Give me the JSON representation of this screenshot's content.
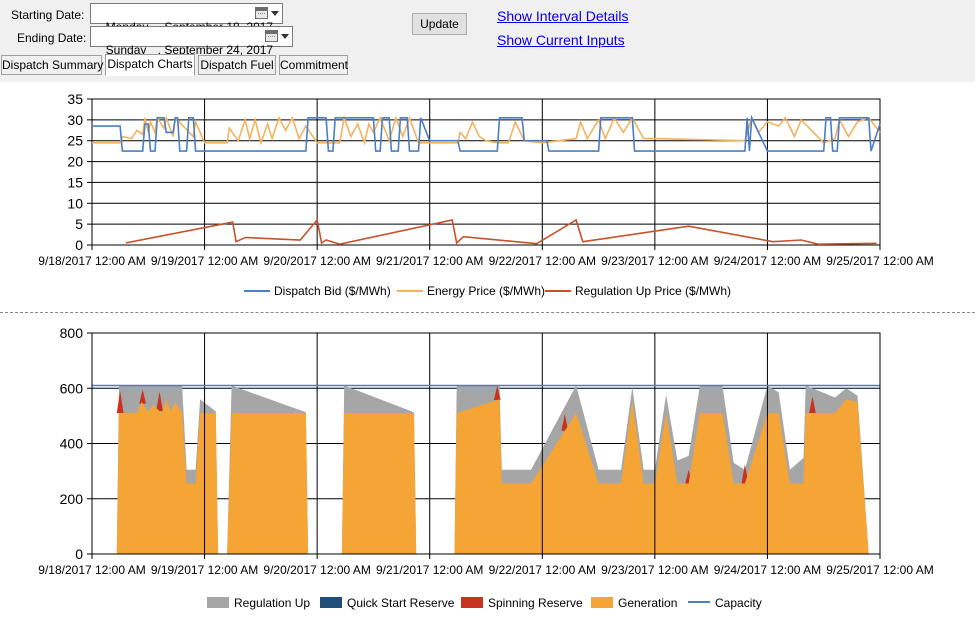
{
  "controls": {
    "starting_label": "Starting Date:",
    "starting_dow": "Monday",
    "starting_date": ", September 18, 2017",
    "ending_label": "Ending Date:",
    "ending_dow": "Sunday",
    "ending_date": ", September 24, 2017",
    "update_label": "Update",
    "link_interval": "Show Interval Details",
    "link_inputs": "Show Current Inputs"
  },
  "tabs": [
    {
      "label": "Dispatch Summary",
      "active": false
    },
    {
      "label": "Dispatch Charts",
      "active": true
    },
    {
      "label": "Dispatch Fuel",
      "active": false
    },
    {
      "label": "Commitment",
      "active": false
    }
  ],
  "colors": {
    "dispatch_bid": "#4a7fc8",
    "energy_price": "#f4b25f",
    "regulation_up_price": "#c9512b",
    "regulation_up": "#a6a6a6",
    "quick_start": "#1f4e79",
    "spinning": "#c8321e",
    "generation": "#f4a535",
    "capacity": "#4a7fc8"
  },
  "chart_data": [
    {
      "type": "line",
      "x_ticks": [
        "9/18/2017 12:00 AM",
        "9/19/2017 12:00 AM",
        "9/20/2017 12:00 AM",
        "9/21/2017 12:00 AM",
        "9/22/2017 12:00 AM",
        "9/23/2017 12:00 AM",
        "9/24/2017 12:00 AM",
        "9/25/2017 12:00 AM"
      ],
      "y_ticks": [
        0,
        5,
        10,
        15,
        20,
        25,
        30,
        35
      ],
      "ylim": [
        0,
        35
      ],
      "xlim_days": [
        0,
        7
      ],
      "legend_position": "bottom",
      "grid": true,
      "series": [
        {
          "name": "Dispatch Bid ($/MWh)",
          "x": [
            0,
            0.25,
            0.27,
            0.45,
            0.47,
            0.5,
            0.52,
            0.56,
            0.58,
            0.64,
            0.66,
            0.72,
            0.74,
            0.76,
            0.78,
            0.84,
            0.86,
            0.9,
            0.92,
            1.0,
            1.9,
            1.92,
            2.08,
            2.1,
            2.14,
            2.16,
            2.5,
            2.52,
            2.56,
            2.58,
            2.64,
            2.66,
            2.72,
            2.74,
            2.8,
            2.82,
            2.9,
            2.92,
            3.0,
            3.25,
            3.27,
            3.6,
            3.62,
            3.82,
            3.84,
            4.04,
            4.06,
            4.5,
            4.52,
            4.8,
            4.82,
            5.0,
            5.8,
            5.82,
            5.84,
            5.86,
            6.0,
            6.5,
            6.52,
            6.56,
            6.58,
            6.62,
            6.64,
            6.7,
            6.72,
            6.9,
            6.92,
            7.0
          ],
          "values": [
            28.5,
            28.5,
            22.5,
            22.5,
            29,
            29,
            22.5,
            22.5,
            30.5,
            30.5,
            27,
            27,
            30.5,
            30.5,
            22.5,
            22.5,
            30.5,
            30.5,
            22.5,
            22.5,
            22.5,
            30.5,
            30.5,
            22.5,
            22.5,
            30.5,
            30.5,
            22.5,
            22.5,
            30.5,
            30.5,
            22.5,
            22.5,
            30.5,
            30.5,
            22.5,
            22.5,
            30.5,
            25,
            25,
            22.5,
            22.5,
            30.5,
            30.5,
            25,
            25,
            22.5,
            22.5,
            30.5,
            30.5,
            22.5,
            22.5,
            22.5,
            30.5,
            22.5,
            30.5,
            22.5,
            22.5,
            30.5,
            30.5,
            22.5,
            22.5,
            30.5,
            30.5,
            30.5,
            30.5,
            22.5,
            29
          ]
        },
        {
          "name": "Energy Price ($/MWh)",
          "x": [
            0,
            0.25,
            0.27,
            0.35,
            0.4,
            0.45,
            0.47,
            0.5,
            0.52,
            0.56,
            0.58,
            0.64,
            0.66,
            0.72,
            0.74,
            0.9,
            0.92,
            1.0,
            1.2,
            1.22,
            1.3,
            1.36,
            1.4,
            1.45,
            1.5,
            1.56,
            1.6,
            1.66,
            1.72,
            1.78,
            1.84,
            1.9,
            2.0,
            2.2,
            2.24,
            2.3,
            2.36,
            2.42,
            2.46,
            2.5,
            2.56,
            2.64,
            2.7,
            2.76,
            2.82,
            2.9,
            3.0,
            3.25,
            3.27,
            3.32,
            3.38,
            3.44,
            3.5,
            3.6,
            3.7,
            3.76,
            3.84,
            4.0,
            4.3,
            4.34,
            4.4,
            4.5,
            4.56,
            4.64,
            4.72,
            4.8,
            4.9,
            5.0,
            5.8,
            5.86,
            5.92,
            6.0,
            6.1,
            6.16,
            6.24,
            6.3,
            6.5,
            6.6,
            6.64,
            6.72,
            6.8,
            6.9,
            7.0
          ],
          "values": [
            24.5,
            24.5,
            26,
            25.5,
            27.5,
            26.5,
            30.5,
            27,
            29.5,
            27,
            30.5,
            28,
            30.5,
            26,
            30.5,
            26,
            29.5,
            24.5,
            24.5,
            28,
            25,
            30,
            25.5,
            30,
            24.5,
            29,
            25.5,
            30.5,
            27.5,
            30.5,
            25.5,
            28.5,
            24.5,
            24.5,
            30.5,
            26,
            29,
            24.5,
            29,
            27,
            30.5,
            25,
            30.5,
            26,
            30.5,
            24.5,
            24.5,
            24.5,
            27,
            25.5,
            29.5,
            26,
            25,
            24.5,
            24.5,
            29.5,
            25,
            24.5,
            25.5,
            29.5,
            25.5,
            30,
            25.5,
            30.5,
            27,
            30.5,
            25.5,
            25.5,
            25,
            30.5,
            27,
            29.5,
            28.5,
            30.5,
            26,
            30,
            24.5,
            25.5,
            30,
            26,
            29.5,
            30.5,
            27
          ]
        },
        {
          "name": "Regulation Up Price ($/MWh)",
          "x": [
            0.3,
            1.25,
            1.28,
            1.36,
            1.85,
            2.0,
            2.04,
            2.08,
            2.2,
            3.2,
            3.24,
            3.3,
            3.95,
            4.3,
            4.36,
            5.3,
            6.05,
            6.3,
            6.45,
            6.97
          ],
          "values": [
            0.5,
            5.5,
            0.8,
            1.8,
            1.2,
            6,
            0.5,
            1.2,
            0.2,
            6,
            0.5,
            2,
            0.3,
            6,
            0.8,
            4.5,
            0.8,
            1.2,
            0.2,
            0.4
          ]
        }
      ]
    },
    {
      "type": "area",
      "x_ticks": [
        "9/18/2017 12:00 AM",
        "9/19/2017 12:00 AM",
        "9/20/2017 12:00 AM",
        "9/21/2017 12:00 AM",
        "9/22/2017 12:00 AM",
        "9/23/2017 12:00 AM",
        "9/24/2017 12:00 AM",
        "9/25/2017 12:00 AM"
      ],
      "y_ticks": [
        0,
        200,
        400,
        600,
        800
      ],
      "ylim": [
        0,
        800
      ],
      "xlim_days": [
        0,
        7
      ],
      "legend_position": "bottom",
      "grid": true,
      "stacked": true,
      "capacity": 610,
      "series": [
        {
          "name": "Generation",
          "x": [
            0.22,
            0.24,
            0.4,
            0.44,
            0.5,
            0.54,
            0.62,
            0.66,
            0.7,
            0.74,
            0.8,
            0.84,
            0.92,
            0.96,
            1.1,
            1.12,
            1.2,
            1.24,
            1.9,
            1.92,
            2.22,
            2.24,
            2.86,
            2.88,
            3.22,
            3.24,
            3.62,
            3.64,
            3.9,
            4.3,
            4.5,
            4.7,
            4.8,
            4.9,
            5.0,
            5.1,
            5.2,
            5.3,
            5.4,
            5.6,
            5.7,
            5.8,
            6.0,
            6.1,
            6.2,
            6.32,
            6.34,
            6.6,
            6.7,
            6.8,
            6.9,
            6.94,
            6.96
          ],
          "values": [
            0,
            510,
            510,
            550,
            515,
            540,
            510,
            560,
            515,
            550,
            510,
            255,
            255,
            510,
            510,
            0,
            0,
            510,
            510,
            0,
            0,
            510,
            510,
            0,
            0,
            510,
            560,
            255,
            255,
            510,
            255,
            255,
            555,
            255,
            255,
            510,
            255,
            255,
            510,
            510,
            255,
            255,
            510,
            510,
            255,
            255,
            510,
            510,
            560,
            550,
            0,
            0,
            0
          ]
        },
        {
          "name": "Spinning Reserve",
          "x": [
            0.25,
            0.45,
            0.6,
            3.6,
            4.2,
            5.3,
            5.8,
            6.4
          ],
          "values": [
            80,
            50,
            70,
            90,
            60,
            50,
            70,
            60
          ]
        },
        {
          "name": "Quick Start Reserve",
          "x": [],
          "values": []
        },
        {
          "name": "Regulation Up",
          "x": [
            0.24,
            0.8,
            0.84,
            0.96,
            1.12,
            1.24,
            1.92,
            2.24,
            2.88,
            3.24,
            3.64,
            3.9,
            4.3,
            4.5,
            4.7,
            5.0,
            5.3,
            5.6,
            5.8,
            6.0,
            6.2,
            6.34,
            6.94
          ],
          "values": [
            100,
            100,
            50,
            50,
            0,
            100,
            0,
            100,
            0,
            100,
            50,
            50,
            100,
            50,
            50,
            50,
            100,
            100,
            50,
            100,
            50,
            100,
            0
          ]
        },
        {
          "name": "Capacity",
          "x": [
            0,
            7
          ],
          "values": [
            610,
            610
          ]
        }
      ]
    }
  ]
}
